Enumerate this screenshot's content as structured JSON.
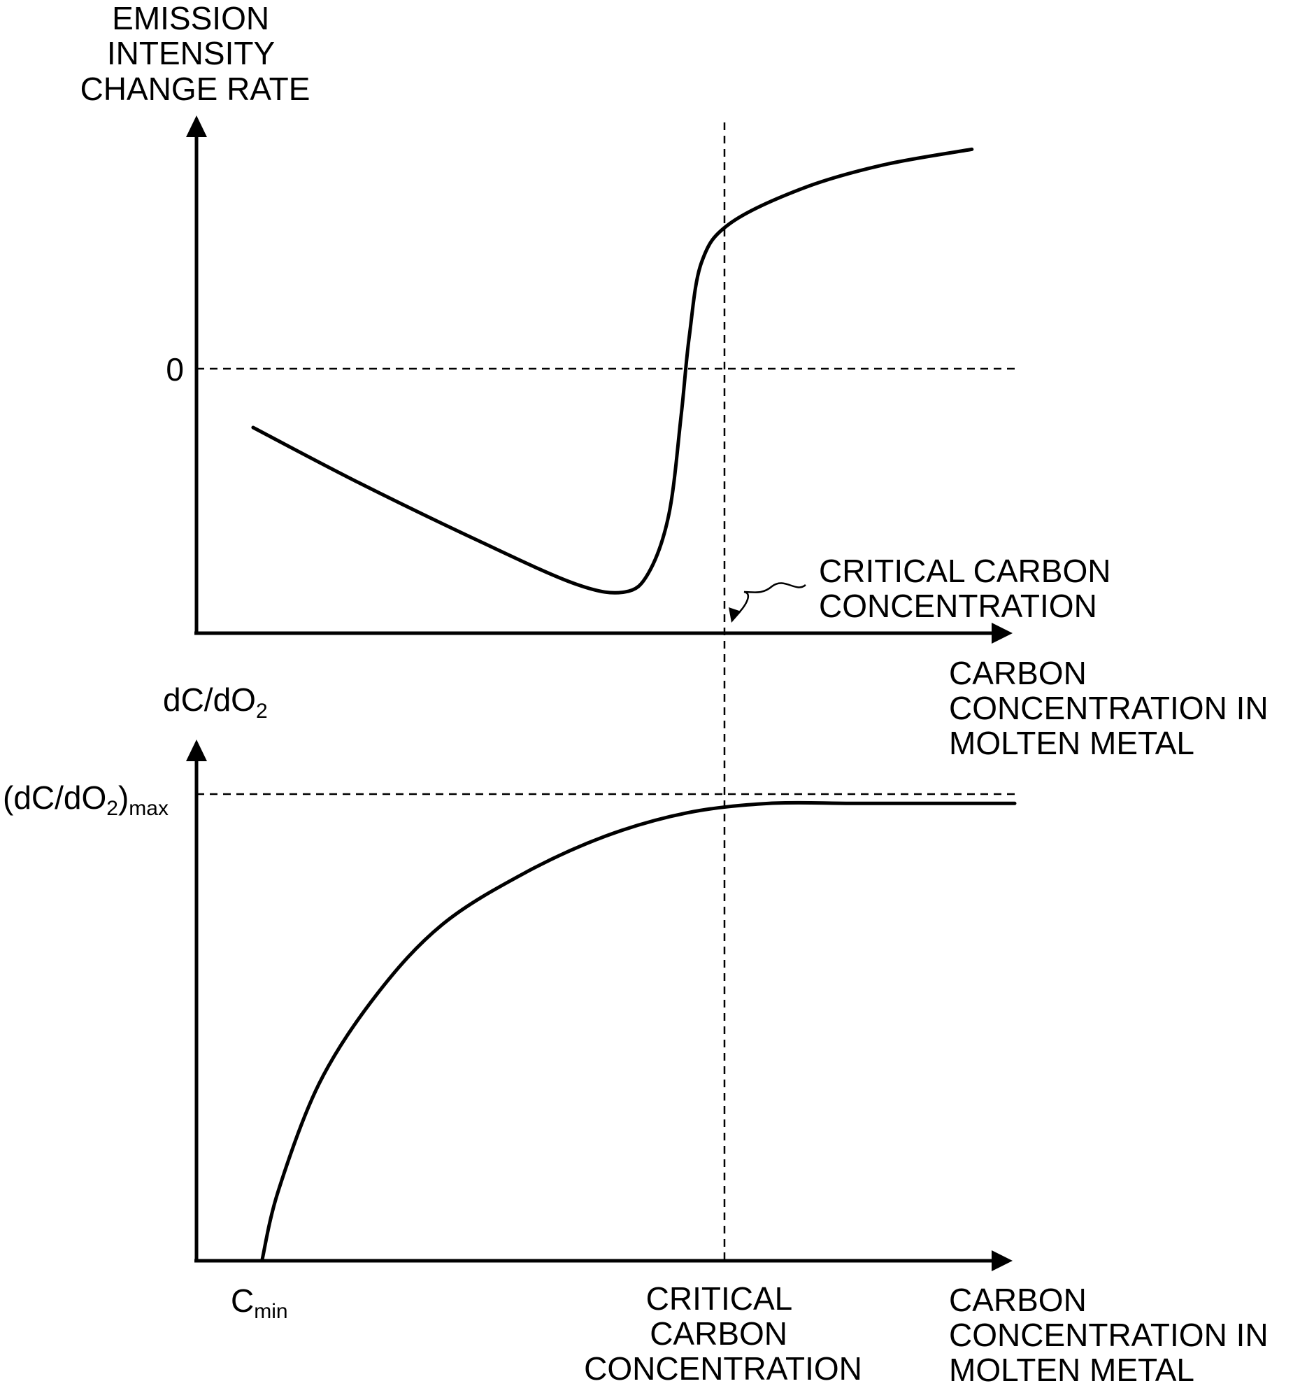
{
  "chart_data": [
    {
      "type": "line",
      "ylabel_lines": [
        "EMISSION",
        "INTENSITY",
        "CHANGE RATE"
      ],
      "xlabel_lines": [
        "CARBON",
        "CONCENTRATION IN",
        "MOLTEN METAL"
      ],
      "y_tick_label": "0",
      "annotation_lines": [
        "CRITICAL CARBON",
        "CONCENTRATION"
      ],
      "grid": false,
      "series": [
        {
          "x": [
            0.07,
            0.2,
            0.35,
            0.47,
            0.53,
            0.56,
            0.585,
            0.6,
            0.61,
            0.625,
            0.66,
            0.75,
            0.85,
            0.96
          ],
          "values": [
            -0.15,
            -0.29,
            -0.44,
            -0.55,
            -0.57,
            -0.52,
            -0.37,
            -0.12,
            0.08,
            0.27,
            0.37,
            0.46,
            0.52,
            0.56
          ]
        }
      ]
    },
    {
      "type": "line",
      "ylabel": "dC/dO",
      "ylabel_sub": "2",
      "xlabel_lines": [
        "CARBON",
        "CONCENTRATION IN",
        "MOLTEN METAL"
      ],
      "y_tick_label": {
        "main": "(dC/dO",
        "sub1": "2",
        "close": ")",
        "sub2": "max"
      },
      "x_tick_label_left": {
        "main": "C",
        "sub": "min"
      },
      "x_tick_label_critical_lines": [
        "CRITICAL",
        "CARBON",
        "CONCENTRATION"
      ],
      "grid": false,
      "series": [
        {
          "x": [
            0.08,
            0.1,
            0.15,
            0.22,
            0.3,
            0.4,
            0.5,
            0.6,
            0.7,
            0.8,
            0.9,
            1.0
          ],
          "values": [
            0.0,
            0.15,
            0.38,
            0.57,
            0.72,
            0.83,
            0.91,
            0.96,
            0.98,
            0.98,
            0.98,
            0.98
          ]
        }
      ]
    }
  ]
}
